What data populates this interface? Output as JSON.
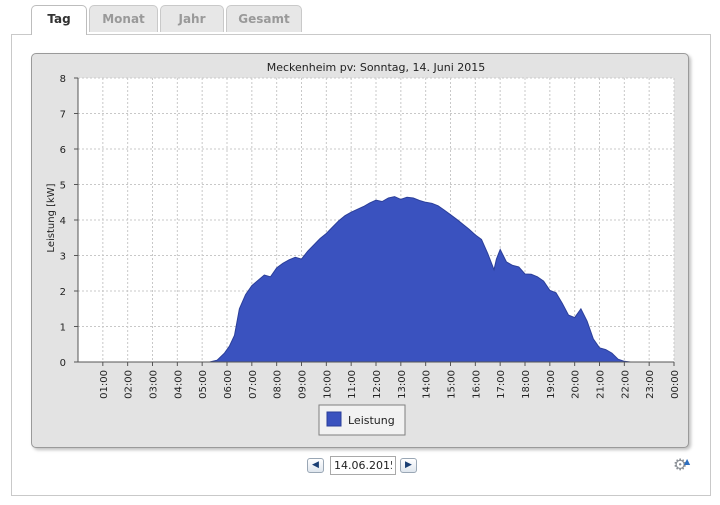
{
  "tabs": [
    {
      "label": "Tag",
      "active": true
    },
    {
      "label": "Monat",
      "active": false
    },
    {
      "label": "Jahr",
      "active": false
    },
    {
      "label": "Gesamt",
      "active": false
    }
  ],
  "date_nav": {
    "prev_icon": "chevron-left-icon",
    "next_icon": "chevron-right-icon",
    "prev_glyph": "◀",
    "next_glyph": "▶",
    "date_value": "14.06.2015"
  },
  "settings": {
    "icon": "gear-icon"
  },
  "colors": {
    "series": "#3a52bf",
    "series_stroke": "#2b3f9a",
    "plot_bg": "#ffffff",
    "frame_bg": "#e3e3e3",
    "grid": "#c8c8c8"
  },
  "chart_data": {
    "type": "area",
    "title": "Meckenheim pv: Sonntag, 14. Juni 2015",
    "xlabel": "",
    "ylabel": "Leistung [kW]",
    "ylim": [
      0,
      8
    ],
    "xlim": [
      0,
      24
    ],
    "y_ticks": [
      "0",
      "1",
      "2",
      "3",
      "4",
      "5",
      "6",
      "7",
      "8"
    ],
    "x_ticks": [
      "01:00",
      "02:00",
      "03:00",
      "04:00",
      "05:00",
      "06:00",
      "07:00",
      "08:00",
      "09:00",
      "10:00",
      "11:00",
      "12:00",
      "13:00",
      "14:00",
      "15:00",
      "16:00",
      "17:00",
      "18:00",
      "19:00",
      "20:00",
      "21:00",
      "22:00",
      "23:00",
      "00:00"
    ],
    "grid": true,
    "legend_position": "bottom-center",
    "series": [
      {
        "name": "Leistung",
        "x": [
          0,
          5.3,
          5.6,
          5.9,
          6.1,
          6.3,
          6.5,
          6.75,
          7.0,
          7.25,
          7.5,
          7.75,
          8.0,
          8.25,
          8.5,
          8.75,
          9.0,
          9.25,
          9.5,
          9.75,
          10.0,
          10.25,
          10.5,
          10.75,
          11.0,
          11.25,
          11.5,
          11.75,
          12.0,
          12.25,
          12.5,
          12.75,
          13.0,
          13.25,
          13.5,
          13.75,
          14.0,
          14.25,
          14.5,
          14.75,
          15.0,
          15.25,
          15.5,
          15.75,
          16.0,
          16.25,
          16.5,
          16.75,
          16.85,
          17.0,
          17.25,
          17.5,
          17.75,
          18.0,
          18.25,
          18.5,
          18.75,
          19.0,
          19.25,
          19.5,
          19.75,
          20.0,
          20.25,
          20.5,
          20.75,
          21.0,
          21.25,
          21.5,
          21.75,
          22.0,
          22.25,
          22.5,
          24
        ],
        "y": [
          0,
          0,
          0.05,
          0.25,
          0.45,
          0.75,
          1.5,
          1.9,
          2.15,
          2.3,
          2.45,
          2.4,
          2.65,
          2.78,
          2.88,
          2.95,
          2.9,
          3.12,
          3.3,
          3.48,
          3.62,
          3.8,
          3.98,
          4.12,
          4.22,
          4.3,
          4.38,
          4.48,
          4.56,
          4.52,
          4.62,
          4.66,
          4.58,
          4.64,
          4.62,
          4.55,
          4.5,
          4.47,
          4.4,
          4.28,
          4.15,
          4.02,
          3.88,
          3.74,
          3.58,
          3.45,
          3.05,
          2.6,
          2.9,
          3.17,
          2.82,
          2.72,
          2.68,
          2.48,
          2.47,
          2.4,
          2.28,
          2.02,
          1.95,
          1.65,
          1.32,
          1.25,
          1.5,
          1.15,
          0.65,
          0.4,
          0.35,
          0.25,
          0.08,
          0.02,
          0,
          0,
          0
        ]
      }
    ],
    "legend": [
      {
        "label": "Leistung"
      }
    ]
  }
}
